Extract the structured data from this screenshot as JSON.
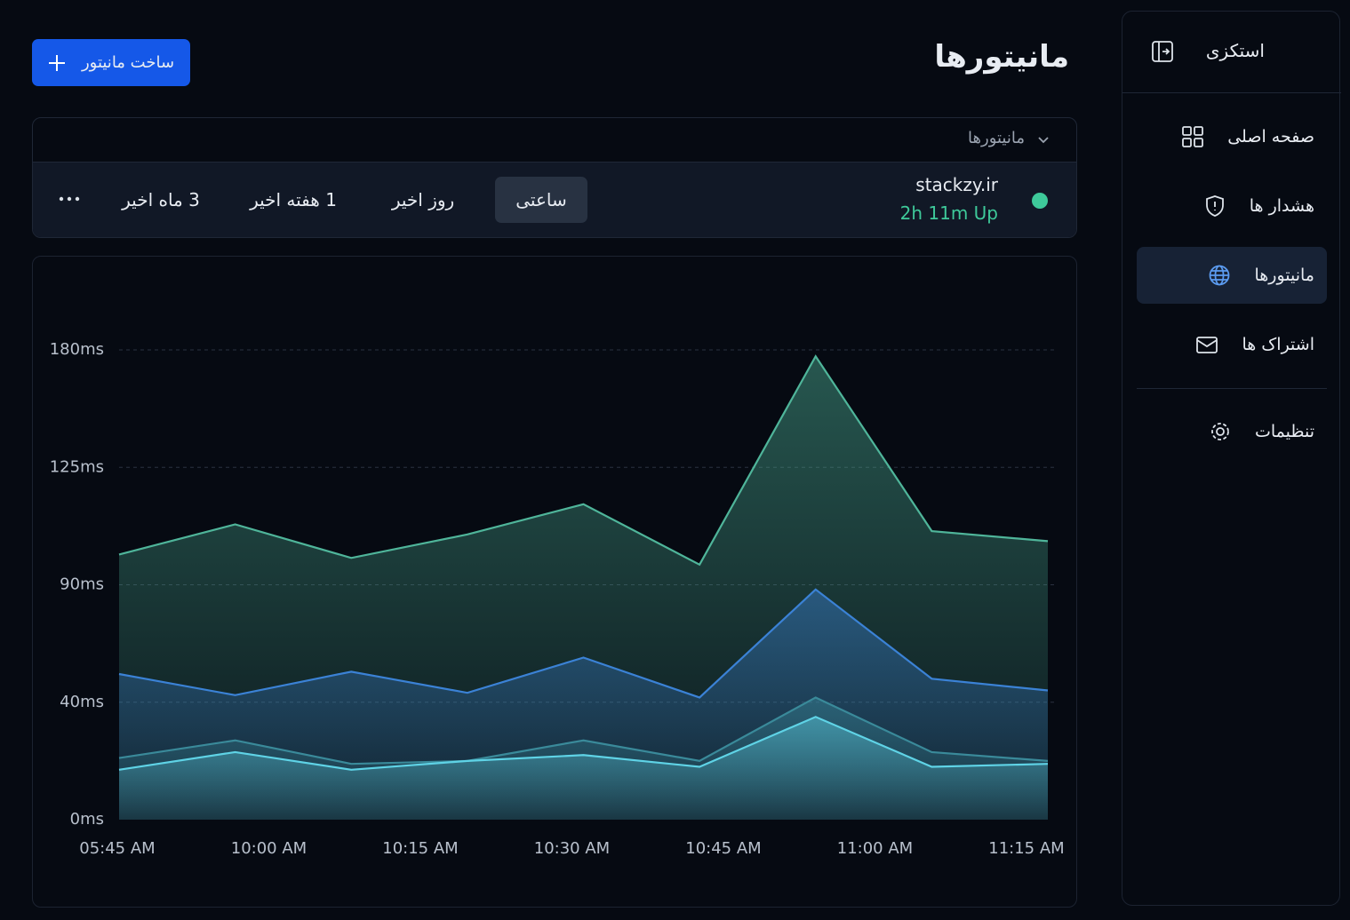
{
  "sidebar": {
    "brand": "استکزی",
    "nav": [
      "صفحه اصلی",
      "هشدار ها",
      "مانیتورها",
      "اشتراک ها"
    ],
    "active": 2,
    "settings": "تنظیمات"
  },
  "header": {
    "title": "مانیتورها",
    "button": "ساخت مانیتور"
  },
  "filter": {
    "label": "مانیتورها"
  },
  "monitor": {
    "name": "stackzy.ir",
    "status": "2h 11m Up",
    "ranges": [
      "ساعتی",
      "روز اخیر",
      "1 هفته اخیر",
      "3 ماه اخیر"
    ],
    "active": 0
  },
  "chart_data": {
    "type": "area",
    "x_labels": [
      "05:45 AM",
      "10:00 AM",
      "10:15 AM",
      "10:30 AM",
      "10:45 AM",
      "11:00 AM",
      "11:15 AM"
    ],
    "ylim": [
      0,
      180
    ],
    "yticks": [
      {
        "value": 0,
        "label": "0ms"
      },
      {
        "value": 40,
        "label": "40ms"
      },
      {
        "value": 90,
        "label": "90ms"
      },
      {
        "value": 125,
        "label": "125ms"
      },
      {
        "value": 180,
        "label": "180ms"
      }
    ],
    "grid": true,
    "series": [
      {
        "color": "#4fb59a",
        "values": [
          99,
          108,
          98,
          105,
          114,
          96,
          177,
          106,
          103
        ]
      },
      {
        "color": "#3b82d6",
        "values": [
          52,
          43,
          53,
          44,
          59,
          42,
          88,
          50,
          45
        ]
      },
      {
        "color": "#3a8a9a",
        "values": [
          21,
          27,
          19,
          20,
          27,
          20,
          42,
          23,
          20
        ]
      },
      {
        "color": "#5fd3e6",
        "values": [
          17,
          23,
          17,
          20,
          22,
          18,
          35,
          18,
          19
        ]
      }
    ]
  }
}
